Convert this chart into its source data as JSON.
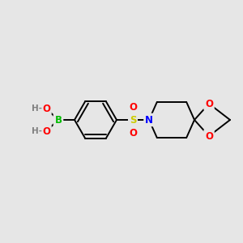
{
  "bg_color": "#e6e6e6",
  "atom_colors": {
    "B": "#00bb00",
    "O": "#ff0000",
    "S": "#cccc00",
    "N": "#0000ff",
    "C": "#000000",
    "H": "#808080"
  },
  "bond_lw": 1.4,
  "font_size": 8.5,
  "figsize": [
    3.0,
    3.0
  ],
  "dpi": 100
}
